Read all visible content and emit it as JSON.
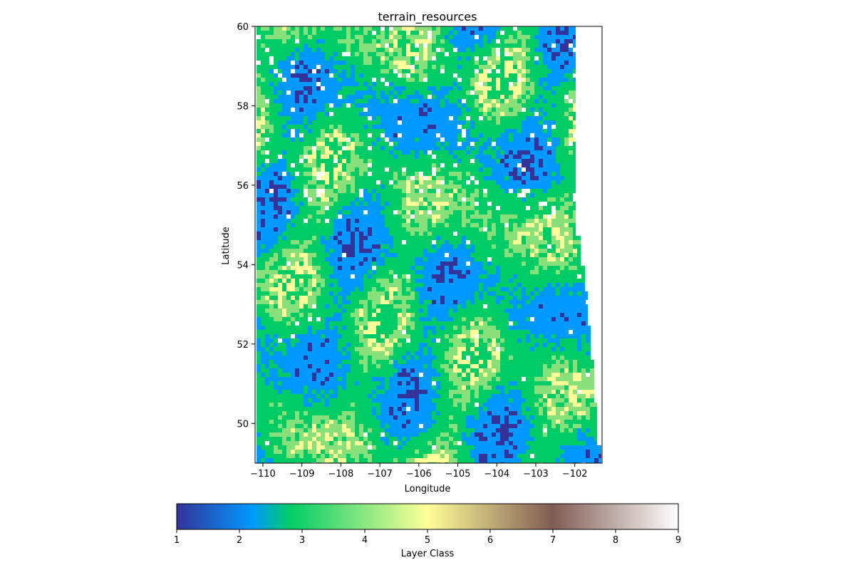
{
  "chart_data": {
    "type": "heatmap",
    "title": "terrain_resources",
    "xlabel": "Longitude",
    "ylabel": "Latitude",
    "xlim": [
      -110.2,
      -101.3
    ],
    "ylim": [
      49,
      60
    ],
    "xticks": [
      -110,
      -109,
      -108,
      -107,
      -106,
      -105,
      -104,
      -103,
      -102
    ],
    "xtick_labels": [
      "−110",
      "−109",
      "−108",
      "−107",
      "−106",
      "−105",
      "−104",
      "−103",
      "−102"
    ],
    "yticks": [
      50,
      52,
      54,
      56,
      58,
      60
    ],
    "ytick_labels": [
      "50",
      "52",
      "54",
      "56",
      "58",
      "60"
    ],
    "colormap": "terrain",
    "colorbar": {
      "label": "Layer Class",
      "range": [
        1,
        9
      ],
      "ticks": [
        1,
        2,
        3,
        4,
        5,
        6,
        7,
        8,
        9
      ],
      "tick_labels": [
        "1",
        "2",
        "3",
        "4",
        "5",
        "6",
        "7",
        "8",
        "9"
      ],
      "orientation": "horizontal",
      "stops": [
        {
          "v": 1.0,
          "color": "#333399"
        },
        {
          "v": 2.2,
          "color": "#0099ff"
        },
        {
          "v": 2.8,
          "color": "#00cc66"
        },
        {
          "v": 5.0,
          "color": "#ffff99"
        },
        {
          "v": 7.0,
          "color": "#805c54"
        },
        {
          "v": 9.0,
          "color": "#ffffff"
        }
      ]
    },
    "grid": false,
    "dominant_classes": [
      {
        "class": 1.5,
        "color": "#333399"
      },
      {
        "class": 2.5,
        "color": "#0099ff"
      },
      {
        "class": 3.0,
        "color": "#00cc66"
      },
      {
        "class": 4.0,
        "color": "#88e07a"
      },
      {
        "class": 5.0,
        "color": "#ffff99"
      },
      {
        "class": 9.0,
        "color": "#ffffff"
      }
    ]
  }
}
